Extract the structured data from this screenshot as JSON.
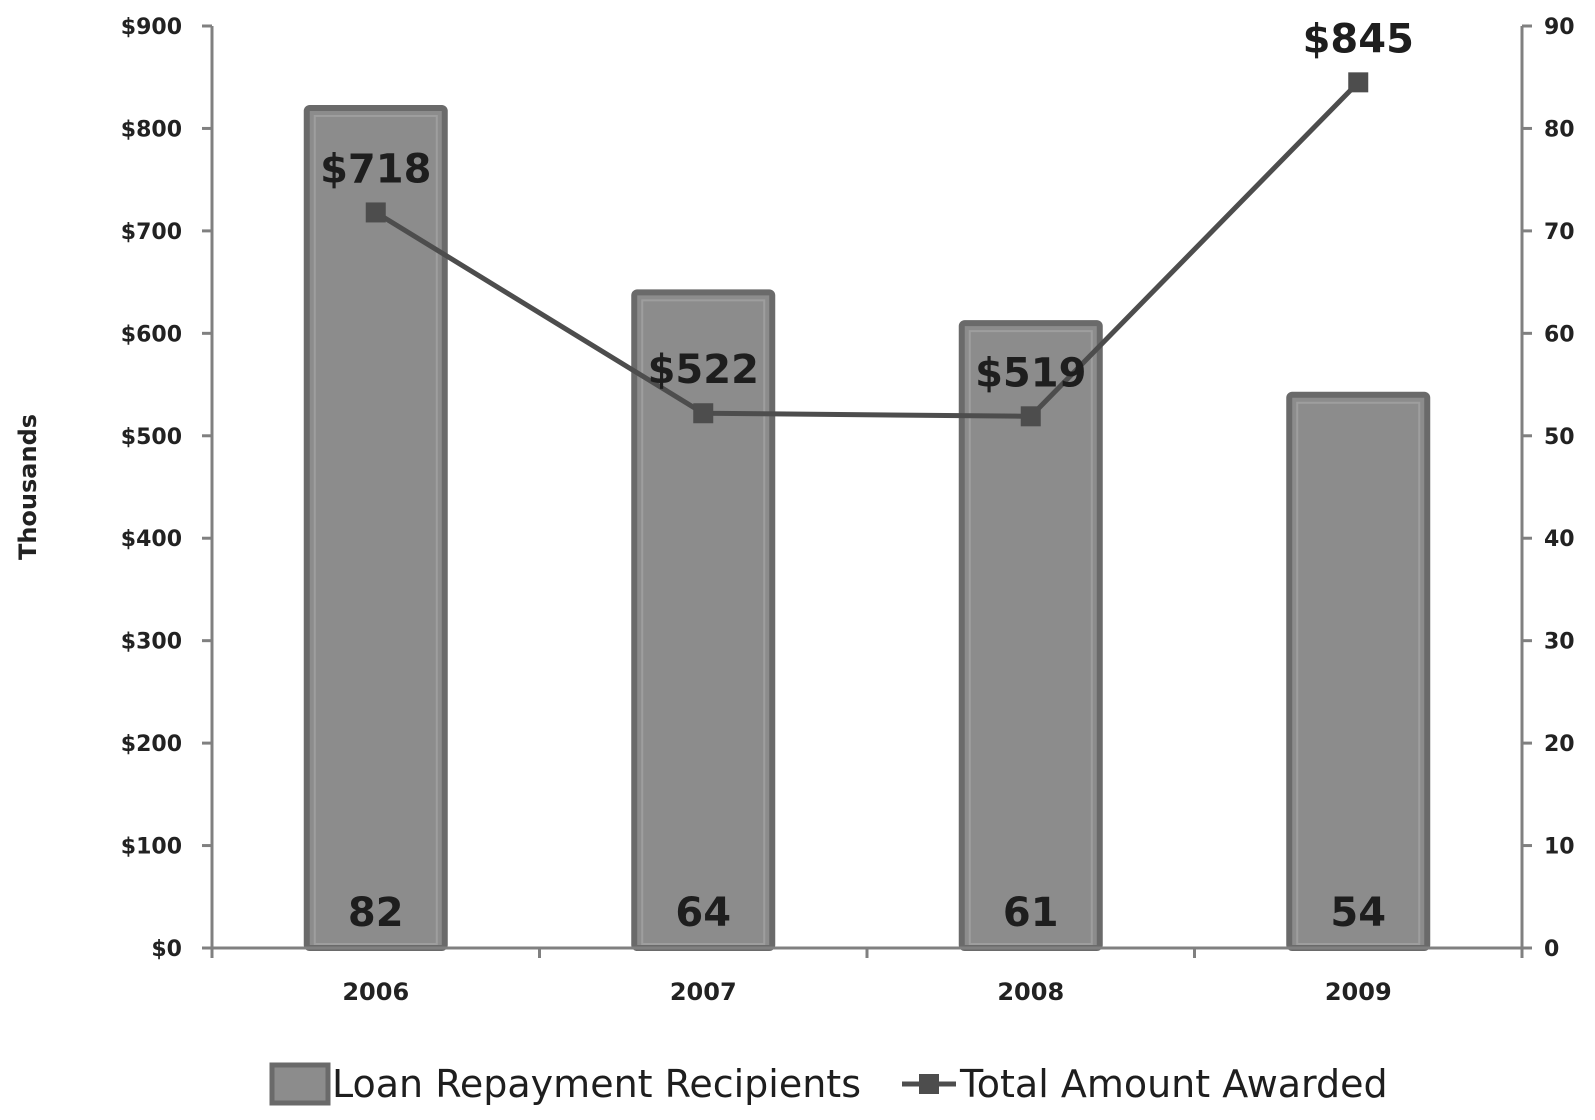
{
  "chart_data": {
    "type": "bar",
    "categories": [
      "2006",
      "2007",
      "2008",
      "2009"
    ],
    "series": [
      {
        "name": "Loan Repayment Recipients",
        "type": "bar",
        "axis": "right",
        "values": [
          82,
          64,
          61,
          54
        ],
        "data_labels": [
          "82",
          "64",
          "61",
          "54"
        ]
      },
      {
        "name": "Total Amount Awarded",
        "type": "line",
        "axis": "left",
        "values": [
          718,
          522,
          519,
          845
        ],
        "data_labels": [
          "$718",
          "$522",
          "$519",
          "$845"
        ]
      }
    ],
    "ylabel": "Thousands",
    "ylim": [
      0,
      900
    ],
    "y_ticks": [
      "$0",
      "$100",
      "$200",
      "$300",
      "$400",
      "$500",
      "$600",
      "$700",
      "$800",
      "$900"
    ],
    "y2lim": [
      0,
      90
    ],
    "y2_ticks": [
      "0",
      "10",
      "20",
      "30",
      "40",
      "50",
      "60",
      "70",
      "80",
      "90"
    ],
    "legend_position": "bottom",
    "grid": false,
    "colors": {
      "bar_fill": "#8c8c8c",
      "bar_edge": "#6a6a6a",
      "line": "#4d4d4d",
      "axis": "#808080"
    }
  }
}
